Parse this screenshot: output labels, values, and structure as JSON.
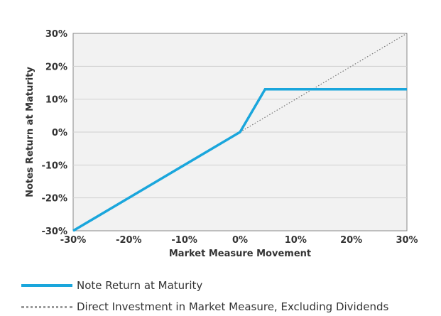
{
  "chart_data": {
    "type": "line",
    "title": "",
    "xlabel": "Market Measure Movement",
    "ylabel": "Notes Return at Maturity",
    "xlim": [
      -30,
      30
    ],
    "ylim": [
      -30,
      30
    ],
    "x_ticks": [
      "-30%",
      "-20%",
      "-10%",
      "0%",
      "10%",
      "20%",
      "30%"
    ],
    "y_ticks": [
      "30%",
      "20%",
      "10%",
      "0%",
      "-10%",
      "-20%",
      "-30%"
    ],
    "x_tick_values": [
      -30,
      -20,
      -10,
      0,
      10,
      20,
      30
    ],
    "y_tick_values": [
      30,
      20,
      10,
      0,
      -10,
      -20,
      -30
    ],
    "grid": true,
    "legend_position": "bottom",
    "series": [
      {
        "name": "Note Return at Maturity",
        "color": "#1aa6dc",
        "style": "solid",
        "x": [
          -30,
          0,
          4.5,
          30
        ],
        "y": [
          -30,
          0,
          13,
          13
        ]
      },
      {
        "name": "Direct Investment in Market Measure, Excluding Dividends",
        "color": "#777777",
        "style": "dotted",
        "x": [
          0,
          30
        ],
        "y": [
          0,
          30
        ]
      }
    ]
  }
}
